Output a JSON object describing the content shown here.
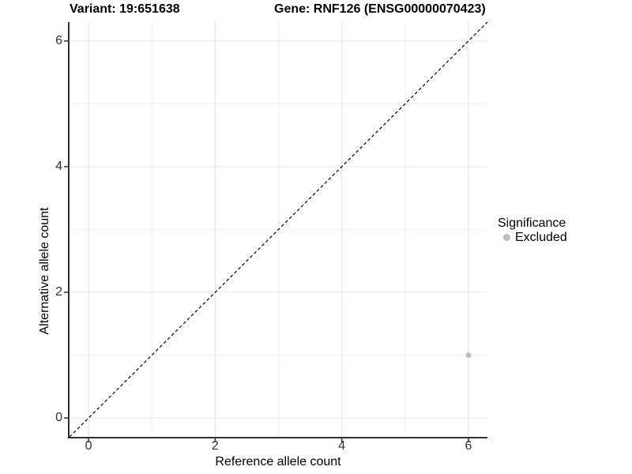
{
  "chart_data": {
    "type": "scatter",
    "titles": {
      "variant": "Variant: 19:651638",
      "gene": "Gene: RNF126 (ENSG00000070423)"
    },
    "xlabel": "Reference allele count",
    "ylabel": "Alternative allele count",
    "x_ticks": [
      0,
      2,
      4,
      6
    ],
    "y_ticks": [
      0,
      2,
      4,
      6
    ],
    "x_minor_gridlines": [
      1,
      3,
      5
    ],
    "y_minor_gridlines": [
      1,
      3,
      5
    ],
    "xlim": [
      -0.3,
      6.3
    ],
    "ylim": [
      -0.3,
      6.3
    ],
    "grid": true,
    "identity_line": {
      "style": "dashed",
      "color": "#000000",
      "equation": "y = x"
    },
    "series": [
      {
        "name": "Excluded",
        "color": "#bebebe",
        "points": [
          {
            "x": 6,
            "y": 1
          }
        ]
      }
    ],
    "legend": {
      "title": "Significance",
      "position": "right",
      "entries": [
        {
          "label": "Excluded",
          "color": "#bebebe"
        }
      ]
    },
    "style": {
      "background": "#ffffff",
      "major_grid_color": "#e3e3e3",
      "minor_grid_color": "#efefef",
      "axis_line_color": "#333333",
      "tick_mark_color": "#333333",
      "point_radius": 3.5
    }
  }
}
